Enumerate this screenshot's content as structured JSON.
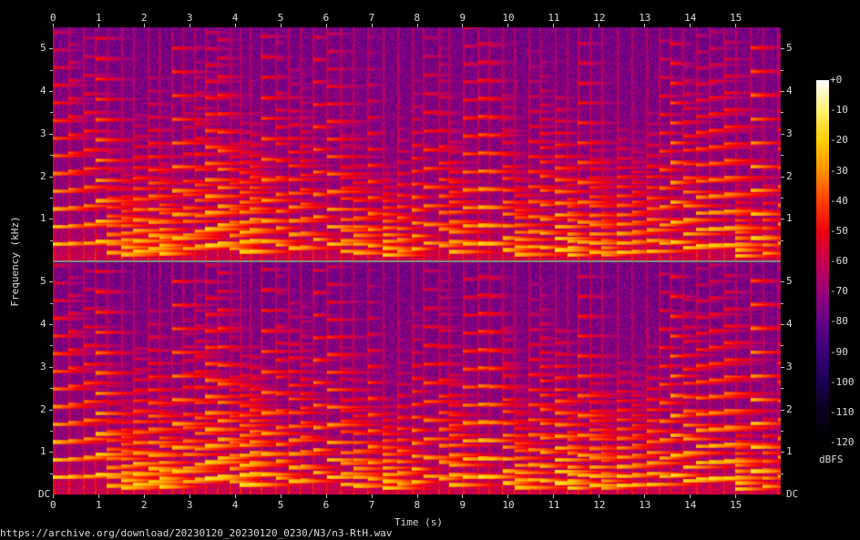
{
  "chart_data": {
    "type": "heatmap",
    "subtype": "spectrogram",
    "channels": 2,
    "xlabel": "Time (s)",
    "ylabel": "Frequency (kHz)",
    "xlim": [
      0,
      16
    ],
    "ylim_khz": [
      0,
      5.5
    ],
    "x_ticks": [
      "0",
      "1",
      "2",
      "3",
      "4",
      "5",
      "6",
      "7",
      "8",
      "9",
      "10",
      "11",
      "12",
      "13",
      "14",
      "15"
    ],
    "y_ticks": [
      "1",
      "2",
      "3",
      "4",
      "5"
    ],
    "y_origin_label": "DC",
    "colorbar": {
      "label": "dBFS",
      "ticks": [
        "+0",
        "-10",
        "-20",
        "-30",
        "-40",
        "-50",
        "-60",
        "-70",
        "-80",
        "-90",
        "-100",
        "-110",
        "-120"
      ],
      "range": [
        -120,
        0
      ],
      "colors": [
        "#000000",
        "#0a0020",
        "#1a0050",
        "#3c0078",
        "#660088",
        "#98007a",
        "#c80050",
        "#f00010",
        "#ff4000",
        "#ff9000",
        "#ffd000",
        "#fff070",
        "#ffffff"
      ]
    }
  },
  "footer": {
    "source": "https://archive.org/download/20230120_20230120_0230/N3/n3-RtH.wav"
  }
}
